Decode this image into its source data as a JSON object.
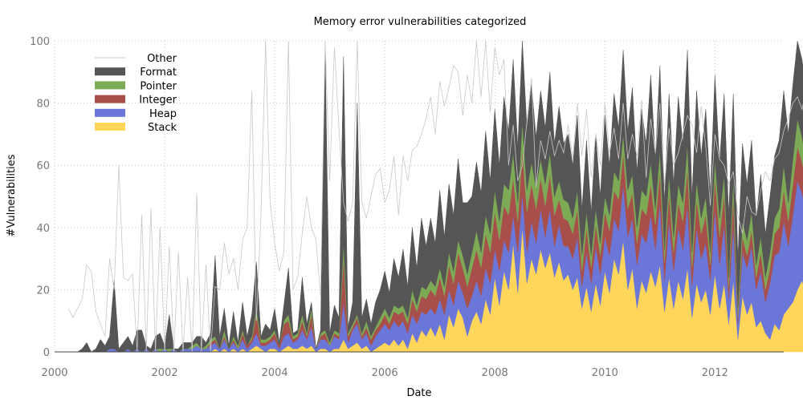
{
  "chart_data": {
    "type": "area",
    "title": "Memory error vulnerabilities categorized",
    "xlabel": "Date",
    "ylabel": "#Vulnerabilities",
    "xlim": [
      2000.0,
      2013.25
    ],
    "ylim": [
      0,
      100
    ],
    "x_ticks": [
      2000,
      2002,
      2004,
      2006,
      2008,
      2010,
      2012
    ],
    "y_ticks": [
      0,
      20,
      40,
      60,
      80,
      100
    ],
    "grid": true,
    "grid_style": "dotted",
    "legend_position": "top-left",
    "x_start": 2000.25,
    "x_step_months": 1,
    "series": [
      {
        "name": "Stack",
        "color": "#ffd65a",
        "values": [
          0,
          0,
          0,
          0,
          0,
          0,
          0,
          0,
          0,
          0,
          0,
          0,
          0,
          0,
          0,
          0,
          0,
          0,
          0,
          0,
          0,
          0,
          0,
          0,
          0,
          0,
          0,
          0,
          0,
          0,
          0,
          0,
          1,
          0,
          1,
          0,
          1,
          0,
          1,
          0,
          1,
          2,
          1,
          0,
          1,
          1,
          0,
          1,
          2,
          1,
          1,
          2,
          1,
          2,
          0,
          1,
          1,
          0,
          1,
          1,
          4,
          1,
          2,
          3,
          1,
          2,
          0,
          1,
          2,
          3,
          2,
          4,
          2,
          4,
          1,
          6,
          3,
          7,
          5,
          8,
          5,
          9,
          4,
          12,
          8,
          14,
          11,
          5,
          10,
          13,
          9,
          17,
          12,
          24,
          15,
          26,
          20,
          35,
          19,
          40,
          22,
          30,
          25,
          33,
          27,
          32,
          24,
          29,
          23,
          25,
          20,
          24,
          14,
          21,
          13,
          22,
          15,
          26,
          19,
          30,
          25,
          36,
          20,
          27,
          14,
          23,
          19,
          26,
          21,
          28,
          13,
          24,
          14,
          23,
          17,
          27,
          11,
          22,
          16,
          20,
          12,
          25,
          14,
          22,
          9,
          23,
          4,
          18,
          12,
          16,
          8,
          10,
          6,
          4,
          9,
          7,
          12,
          14,
          16,
          20,
          23,
          18,
          14,
          10,
          8,
          6,
          6,
          6
        ]
      },
      {
        "name": "Heap",
        "color": "#6b77d8",
        "values": [
          0,
          0,
          0,
          0,
          0,
          0,
          0,
          0,
          0,
          1,
          1,
          0,
          0,
          1,
          0,
          1,
          0,
          1,
          0,
          1,
          0,
          1,
          0,
          1,
          0,
          1,
          1,
          1,
          2,
          1,
          1,
          2,
          2,
          1,
          3,
          1,
          2,
          1,
          3,
          1,
          2,
          4,
          1,
          2,
          2,
          3,
          1,
          4,
          4,
          2,
          3,
          5,
          3,
          6,
          1,
          3,
          3,
          2,
          4,
          3,
          12,
          2,
          5,
          6,
          3,
          4,
          2,
          4,
          5,
          6,
          5,
          6,
          6,
          6,
          5,
          6,
          6,
          6,
          7,
          6,
          7,
          8,
          8,
          8,
          7,
          9,
          8,
          9,
          8,
          10,
          9,
          10,
          10,
          9,
          11,
          10,
          12,
          9,
          13,
          11,
          10,
          12,
          10,
          13,
          10,
          14,
          10,
          12,
          11,
          9,
          10,
          13,
          7,
          11,
          9,
          12,
          10,
          11,
          12,
          13,
          14,
          18,
          17,
          16,
          14,
          15,
          16,
          18,
          12,
          20,
          10,
          18,
          12,
          17,
          16,
          20,
          10,
          18,
          14,
          15,
          11,
          21,
          14,
          19,
          8,
          18,
          5,
          14,
          15,
          18,
          12,
          16,
          10,
          18,
          22,
          25,
          30,
          20,
          28,
          35,
          28,
          26,
          26,
          32,
          28,
          20,
          10,
          5
        ]
      },
      {
        "name": "Integer",
        "color": "#a94f4b",
        "values": [
          0,
          0,
          0,
          0,
          0,
          0,
          0,
          0,
          0,
          0,
          0,
          0,
          0,
          0,
          0,
          0,
          0,
          0,
          0,
          0,
          0,
          0,
          0,
          0,
          0,
          0,
          0,
          0,
          0,
          0,
          0,
          1,
          1,
          0,
          1,
          0,
          1,
          0,
          2,
          1,
          1,
          6,
          1,
          1,
          1,
          2,
          1,
          4,
          4,
          1,
          1,
          3,
          1,
          4,
          0,
          1,
          2,
          0,
          1,
          1,
          14,
          2,
          1,
          2,
          1,
          2,
          2,
          2,
          2,
          3,
          2,
          3,
          4,
          3,
          3,
          5,
          4,
          5,
          5,
          6,
          6,
          7,
          6,
          8,
          7,
          9,
          8,
          7,
          9,
          10,
          9,
          11,
          10,
          12,
          10,
          11,
          12,
          12,
          10,
          14,
          13,
          12,
          11,
          10,
          10,
          11,
          10,
          8,
          9,
          8,
          8,
          9,
          5,
          8,
          5,
          7,
          6,
          8,
          8,
          9,
          10,
          10,
          9,
          8,
          7,
          8,
          9,
          10,
          8,
          10,
          6,
          9,
          6,
          8,
          9,
          12,
          6,
          9,
          8,
          9,
          5,
          10,
          9,
          10,
          4,
          9,
          2,
          5,
          4,
          5,
          4,
          6,
          4,
          5,
          7,
          8,
          10,
          8,
          10,
          11,
          10,
          9,
          10,
          11,
          10,
          7,
          8,
          6
        ]
      },
      {
        "name": "Pointer",
        "color": "#7daa55",
        "values": [
          0,
          0,
          0,
          0,
          0,
          0,
          0,
          0,
          0,
          0,
          0,
          0,
          0,
          0,
          0,
          0,
          0,
          0,
          0,
          0,
          1,
          0,
          1,
          0,
          0,
          0,
          0,
          1,
          1,
          0,
          1,
          1,
          1,
          0,
          2,
          0,
          1,
          1,
          1,
          0,
          1,
          2,
          1,
          1,
          1,
          1,
          0,
          1,
          2,
          1,
          1,
          2,
          1,
          2,
          0,
          1,
          1,
          1,
          1,
          1,
          5,
          1,
          1,
          1,
          1,
          2,
          1,
          1,
          2,
          2,
          2,
          2,
          2,
          2,
          2,
          3,
          2,
          3,
          3,
          3,
          3,
          3,
          3,
          4,
          4,
          4,
          4,
          4,
          5,
          6,
          5,
          6,
          6,
          7,
          6,
          7,
          8,
          8,
          6,
          9,
          7,
          7,
          7,
          6,
          7,
          7,
          6,
          6,
          6,
          6,
          5,
          6,
          5,
          5,
          4,
          5,
          4,
          5,
          5,
          6,
          6,
          6,
          6,
          6,
          5,
          6,
          6,
          7,
          5,
          7,
          4,
          6,
          5,
          6,
          6,
          8,
          5,
          6,
          5,
          6,
          4,
          6,
          6,
          6,
          3,
          6,
          3,
          5,
          5,
          6,
          4,
          5,
          4,
          5,
          5,
          6,
          8,
          6,
          8,
          9,
          8,
          7,
          8,
          8,
          8,
          7,
          7,
          6
        ]
      },
      {
        "name": "Format",
        "color": "#555555",
        "values": [
          0,
          0,
          0,
          1,
          3,
          0,
          1,
          4,
          2,
          4,
          22,
          1,
          3,
          4,
          2,
          6,
          7,
          1,
          1,
          4,
          5,
          1,
          11,
          0,
          1,
          2,
          2,
          1,
          2,
          4,
          1,
          2,
          26,
          4,
          7,
          1,
          8,
          1,
          9,
          3,
          7,
          15,
          1,
          5,
          2,
          7,
          1,
          5,
          15,
          1,
          1,
          12,
          3,
          2,
          0,
          1,
          90,
          3,
          8,
          5,
          60,
          2,
          7,
          68,
          5,
          7,
          4,
          8,
          9,
          12,
          8,
          15,
          10,
          18,
          10,
          20,
          12,
          22,
          14,
          20,
          14,
          25,
          16,
          22,
          18,
          26,
          17,
          23,
          18,
          22,
          19,
          27,
          17,
          26,
          18,
          28,
          19,
          30,
          18,
          32,
          20,
          25,
          16,
          22,
          18,
          26,
          17,
          24,
          18,
          22,
          17,
          24,
          15,
          23,
          14,
          24,
          15,
          26,
          16,
          25,
          17,
          27,
          19,
          28,
          18,
          26,
          17,
          28,
          16,
          27,
          15,
          26,
          17,
          28,
          19,
          30,
          18,
          29,
          20,
          28,
          19,
          27,
          18,
          26,
          20,
          27,
          16,
          25,
          18,
          23,
          15,
          20,
          14,
          18,
          20,
          22,
          24,
          22,
          24,
          26,
          25,
          23,
          22,
          24,
          23,
          21,
          20,
          19
        ]
      },
      {
        "name": "Other",
        "color": "#c8c8c8",
        "values": [
          14,
          11,
          14,
          17,
          28,
          26,
          13,
          9,
          5,
          30,
          20,
          60,
          24,
          23,
          25,
          0,
          44,
          0,
          46,
          0,
          40,
          0,
          34,
          0,
          32,
          0,
          24,
          0,
          51,
          0,
          28,
          0,
          21,
          20,
          35,
          25,
          30,
          20,
          36,
          40,
          84,
          10,
          44,
          100,
          48,
          35,
          26,
          32,
          100,
          20,
          24,
          38,
          50,
          40,
          36,
          18,
          100,
          55,
          98,
          72,
          48,
          42,
          48,
          100,
          48,
          43,
          50,
          57,
          59,
          48,
          52,
          63,
          44,
          63,
          55,
          65,
          66,
          70,
          75,
          82,
          70,
          87,
          79,
          85,
          92,
          90,
          76,
          89,
          80,
          100,
          82,
          100,
          77,
          98,
          89,
          94,
          60,
          73,
          55,
          60,
          74,
          88,
          53,
          68,
          62,
          71,
          63,
          68,
          64,
          73,
          62,
          80,
          63,
          78,
          56,
          70,
          60,
          80,
          64,
          72,
          62,
          80,
          62,
          70,
          63,
          81,
          56,
          75,
          64,
          80,
          53,
          72,
          60,
          64,
          70,
          76,
          73,
          64,
          79,
          66,
          47,
          70,
          62,
          60,
          54,
          58,
          44,
          38,
          50,
          45,
          44,
          52,
          58,
          55,
          62,
          64,
          71,
          75,
          80,
          82,
          78,
          85,
          70,
          65,
          60,
          57,
          50,
          40
        ]
      }
    ]
  }
}
